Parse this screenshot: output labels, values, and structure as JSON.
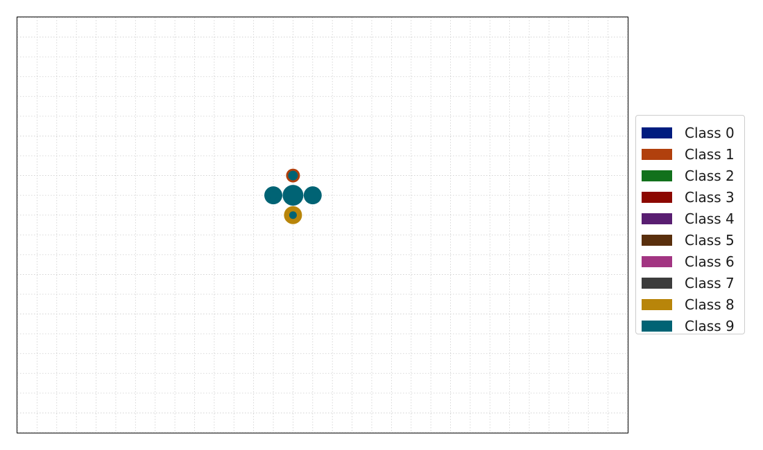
{
  "chart_data": {
    "type": "scatter",
    "title": "",
    "xlabel": "",
    "ylabel": "",
    "grid": true,
    "axis_ticks_visible": false,
    "legend_placement": "center-right, outside plot",
    "xlim": [
      -14,
      17
    ],
    "ylim": [
      -12,
      9
    ],
    "classes": [
      {
        "name": "Class 0",
        "color": "#001c7f"
      },
      {
        "name": "Class 1",
        "color": "#b1400d"
      },
      {
        "name": "Class 2",
        "color": "#12711c"
      },
      {
        "name": "Class 3",
        "color": "#8c0800"
      },
      {
        "name": "Class 4",
        "color": "#591e71"
      },
      {
        "name": "Class 5",
        "color": "#592f0d"
      },
      {
        "name": "Class 6",
        "color": "#a23582"
      },
      {
        "name": "Class 7",
        "color": "#3c3c3c"
      },
      {
        "name": "Class 8",
        "color": "#b8850a"
      },
      {
        "name": "Class 9",
        "color": "#006374"
      }
    ],
    "points": [
      {
        "x": 0,
        "y": 1,
        "ring_class": "Class 1",
        "fill_class": "Class 9",
        "size": "small"
      },
      {
        "x": -1,
        "y": 0,
        "ring_class": "Class 9",
        "fill_class": "Class 9",
        "size": "medium"
      },
      {
        "x": 0,
        "y": 0,
        "ring_class": "Class 9",
        "fill_class": "Class 9",
        "size": "large"
      },
      {
        "x": 1,
        "y": 0,
        "ring_class": "Class 9",
        "fill_class": "Class 9",
        "size": "medium"
      },
      {
        "x": 0,
        "y": -1,
        "ring_class": "Class 8",
        "fill_class": "Class 9",
        "size": "medium"
      }
    ]
  }
}
